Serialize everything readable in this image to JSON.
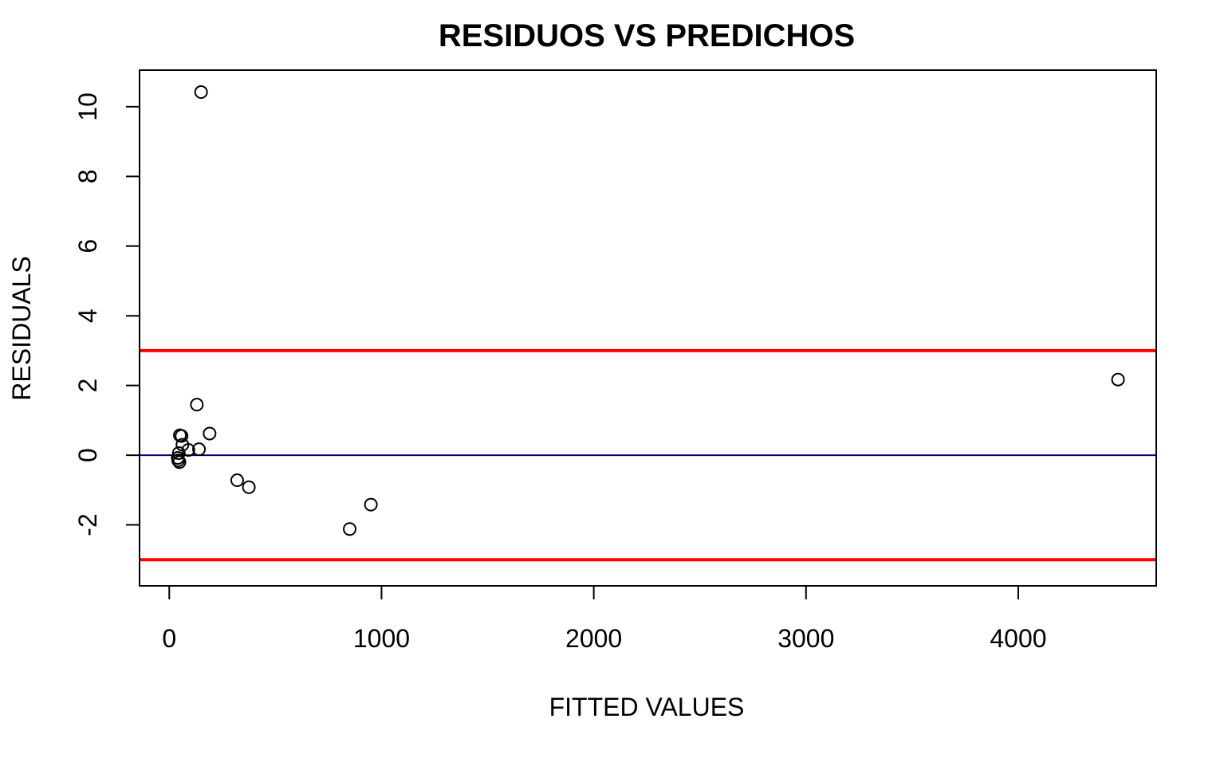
{
  "chart_data": {
    "type": "scatter",
    "title": "RESIDUOS VS PREDICHOS",
    "xlabel": "FITTED VALUES",
    "ylabel": "RESIDUALS",
    "xlim": [
      -140,
      4650
    ],
    "ylim": [
      -3.75,
      11.05
    ],
    "x_ticks": [
      0,
      1000,
      2000,
      3000,
      4000
    ],
    "x_tick_labels": [
      "0",
      "1000",
      "2000",
      "3000",
      "4000"
    ],
    "y_ticks": [
      -2,
      0,
      2,
      4,
      6,
      8,
      10
    ],
    "y_tick_labels": [
      "-2",
      "0",
      "2",
      "4",
      "6",
      "8",
      "10"
    ],
    "grid": false,
    "points": [
      {
        "x": 150,
        "y": 10.42
      },
      {
        "x": 4470,
        "y": 2.17
      },
      {
        "x": 130,
        "y": 1.45
      },
      {
        "x": 190,
        "y": 0.62
      },
      {
        "x": 50,
        "y": 0.57
      },
      {
        "x": 58,
        "y": 0.55
      },
      {
        "x": 62,
        "y": 0.3
      },
      {
        "x": 90,
        "y": 0.15
      },
      {
        "x": 140,
        "y": 0.17
      },
      {
        "x": 45,
        "y": 0.06
      },
      {
        "x": 40,
        "y": -0.08
      },
      {
        "x": 42,
        "y": -0.15
      },
      {
        "x": 48,
        "y": -0.2
      },
      {
        "x": 320,
        "y": -0.72
      },
      {
        "x": 375,
        "y": -0.92
      },
      {
        "x": 950,
        "y": -1.42
      },
      {
        "x": 850,
        "y": -2.12
      }
    ],
    "hlines": [
      {
        "y": 3,
        "color": "#ff0000"
      },
      {
        "y": -3,
        "color": "#ff0000"
      },
      {
        "y": 0,
        "color": "#000080"
      }
    ],
    "point_style": "open-circle",
    "colors": {
      "points": "#000000",
      "limits": "#ff0000",
      "zero_line": "#000080"
    }
  }
}
